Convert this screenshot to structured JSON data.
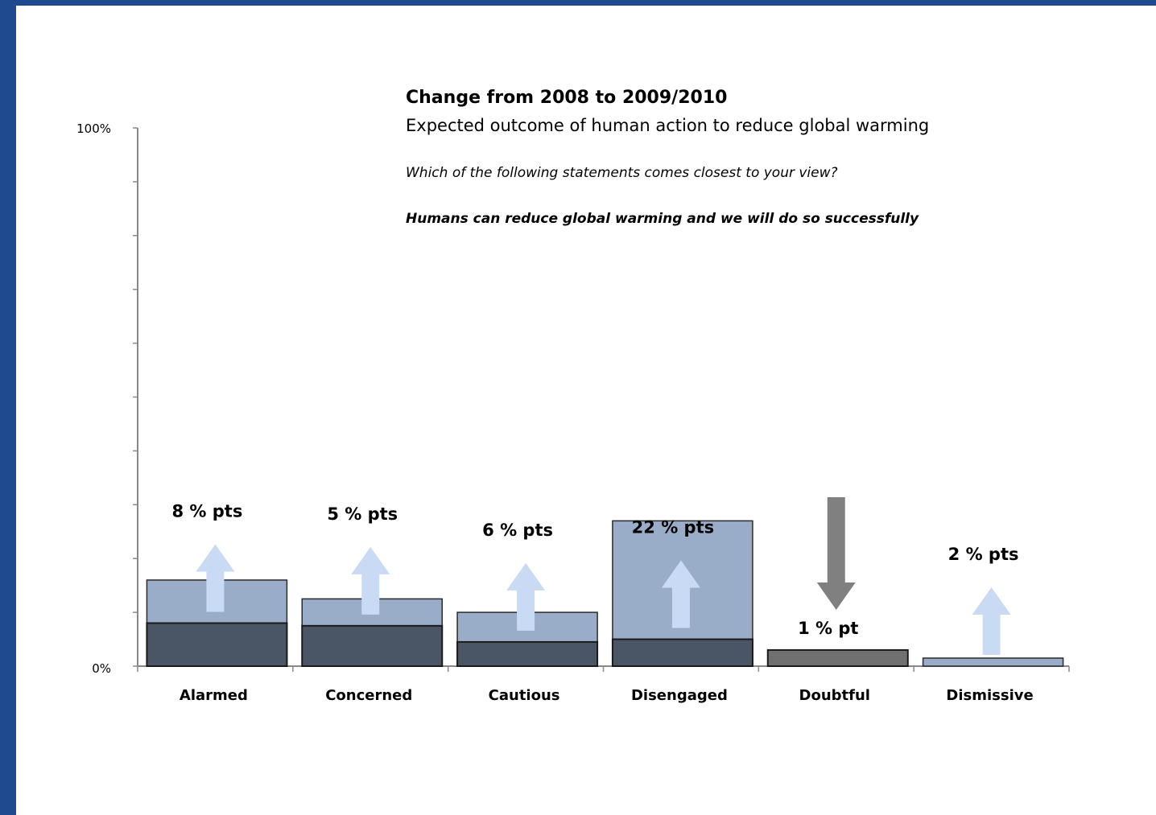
{
  "chart_data": {
    "type": "bar",
    "title": "Change from 2008 to 2009/2010",
    "subtitle": "Expected outcome of human action to reduce global warming",
    "question": "Which of the following statements  comes closest to your view?",
    "statement": "Humans can reduce global warming and we will do so successfully",
    "categories": [
      "Alarmed",
      "Concerned",
      "Cautious",
      "Disengaged",
      "Doubtful",
      "Dismissive"
    ],
    "series": [
      {
        "values": [
          16,
          12.5,
          10,
          27,
          1.5,
          1.5
        ]
      },
      {
        "values": [
          8,
          7.5,
          4.5,
          5,
          3,
          0
        ]
      }
    ],
    "changes": [
      {
        "label": "8 % pts",
        "direction": "up"
      },
      {
        "label": "5 % pts",
        "direction": "up"
      },
      {
        "label": "6 % pts",
        "direction": "up"
      },
      {
        "label": "22 % pts",
        "direction": "up"
      },
      {
        "label": "1 % pt",
        "direction": "down"
      },
      {
        "label": "2 % pts",
        "direction": "up"
      }
    ],
    "yticks": [
      "100%",
      "0%"
    ],
    "ylim": [
      0,
      100
    ],
    "colors": {
      "current": "#9aadc8",
      "previous": "#4a5566",
      "up_arrow": "#c9daf5",
      "down_arrow": "#808080",
      "axis": "#888888"
    }
  }
}
